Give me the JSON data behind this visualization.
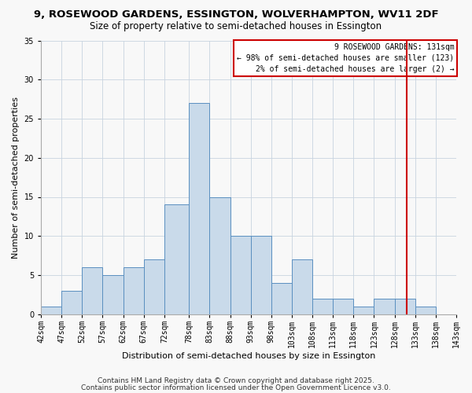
{
  "title1": "9, ROSEWOOD GARDENS, ESSINGTON, WOLVERHAMPTON, WV11 2DF",
  "title2": "Size of property relative to semi-detached houses in Essington",
  "xlabel": "Distribution of semi-detached houses by size in Essington",
  "ylabel": "Number of semi-detached properties",
  "bin_labels": [
    "42sqm",
    "47sqm",
    "52sqm",
    "57sqm",
    "62sqm",
    "67sqm",
    "72sqm",
    "78sqm",
    "83sqm",
    "88sqm",
    "93sqm",
    "98sqm",
    "103sqm",
    "108sqm",
    "113sqm",
    "118sqm",
    "123sqm",
    "128sqm",
    "133sqm",
    "138sqm",
    "143sqm"
  ],
  "bar_counts": [
    1,
    3,
    6,
    5,
    6,
    7,
    14,
    27,
    15,
    10,
    10,
    4,
    7,
    2,
    2,
    1,
    2,
    2,
    1,
    0
  ],
  "bin_edges": [
    42,
    47,
    52,
    57,
    62,
    67,
    72,
    78,
    83,
    88,
    93,
    98,
    103,
    108,
    113,
    118,
    123,
    128,
    133,
    138,
    143
  ],
  "bar_color": "#c9daea",
  "bar_edge_color": "#5a8fc0",
  "vline_x": 131,
  "vline_color": "#cc0000",
  "legend_title": "9 ROSEWOOD GARDENS: 131sqm",
  "legend_line1": "← 98% of semi-detached houses are smaller (123)",
  "legend_line2": "2% of semi-detached houses are larger (2) →",
  "legend_edge_color": "#cc0000",
  "ylim": [
    0,
    35
  ],
  "yticks": [
    0,
    5,
    10,
    15,
    20,
    25,
    30,
    35
  ],
  "footer1": "Contains HM Land Registry data © Crown copyright and database right 2025.",
  "footer2": "Contains public sector information licensed under the Open Government Licence v3.0.",
  "bg_color": "#f8f8f8",
  "grid_color": "#c8d4e0",
  "title1_fontsize": 9.5,
  "title2_fontsize": 8.5,
  "axis_label_fontsize": 8,
  "tick_fontsize": 7,
  "legend_fontsize": 7,
  "footer_fontsize": 6.5
}
